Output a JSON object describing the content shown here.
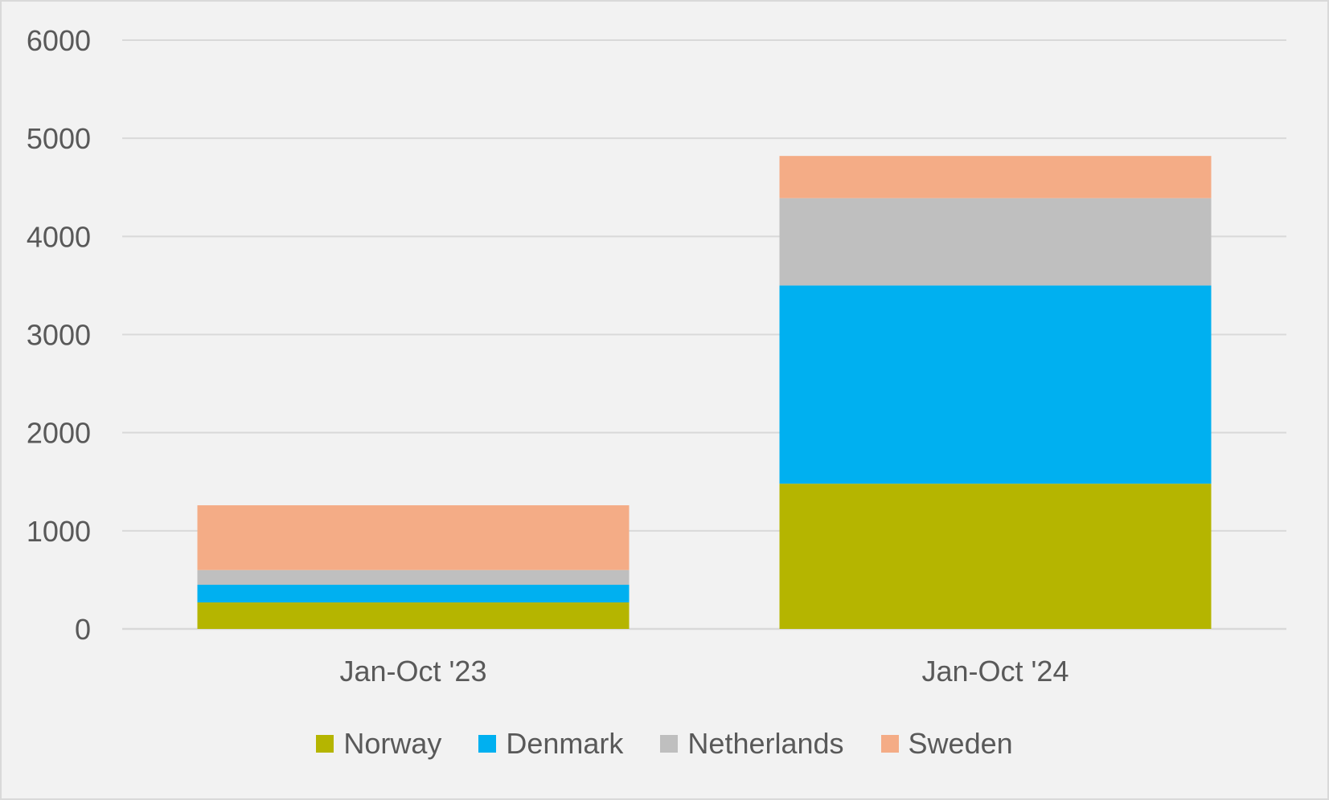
{
  "chart_data": {
    "type": "bar",
    "stacked": true,
    "categories": [
      "Jan-Oct '23",
      "Jan-Oct '24"
    ],
    "series": [
      {
        "name": "Norway",
        "values": [
          270,
          1480
        ],
        "color": "#b5b500"
      },
      {
        "name": "Denmark",
        "values": [
          180,
          2020
        ],
        "color": "#00b0f0"
      },
      {
        "name": "Netherlands",
        "values": [
          150,
          890
        ],
        "color": "#bfbfbf"
      },
      {
        "name": "Sweden",
        "values": [
          660,
          430
        ],
        "color": "#f4ac86"
      }
    ],
    "title": "",
    "xlabel": "",
    "ylabel": "",
    "ylim": [
      0,
      6000
    ],
    "yticks": [
      "0",
      "1000",
      "2000",
      "3000",
      "4000",
      "5000",
      "6000"
    ],
    "grid": true,
    "legend_position": "bottom"
  }
}
